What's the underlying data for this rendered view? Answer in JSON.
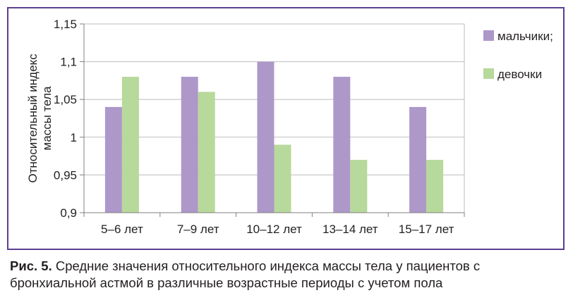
{
  "chart_data": {
    "type": "bar",
    "title": "",
    "xlabel": "",
    "ylabel": [
      "Относительный индекс",
      "массы тела"
    ],
    "categories": [
      "5–6 лет",
      "7–9 лет",
      "10–12 лет",
      "13–14 лет",
      "15–17 лет"
    ],
    "series": [
      {
        "name": "мальчики;",
        "color": "#ae97c9",
        "values": [
          1.04,
          1.08,
          1.1,
          1.08,
          1.04
        ]
      },
      {
        "name": "девочки",
        "color": "#b7d99b",
        "values": [
          1.08,
          1.06,
          0.99,
          0.97,
          0.97
        ]
      }
    ],
    "ylim": [
      0.9,
      1.15
    ],
    "yticks": [
      0.9,
      0.95,
      1.0,
      1.05,
      1.1,
      1.15
    ],
    "ytick_labels": [
      "0,9",
      "0,95",
      "1",
      "1,05",
      "1,1",
      "1,15"
    ],
    "grid": "horizontal",
    "legend_position": "right"
  },
  "caption": {
    "label": "Рис. 5.",
    "text": " Средние значения относительного индекса массы тела у пациентов с бронхиальной астмой в различные возрастные периоды с учетом пола"
  },
  "colors": {
    "frame": "#5b3f91",
    "grid": "#bdbdbd",
    "axis": "#808080"
  }
}
